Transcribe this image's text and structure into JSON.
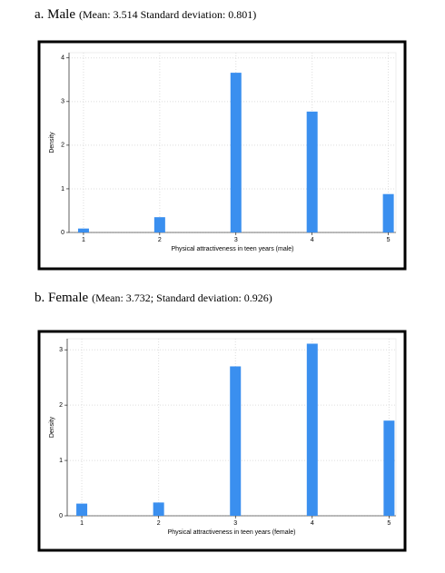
{
  "chart_data": [
    {
      "type": "bar",
      "title": "a. Male",
      "subtitle": "(Mean: 3.514 Standard deviation: 0.801)",
      "x_label": "Physical attractiveness in teen years (male)",
      "y_label": "Density",
      "x": [
        1,
        2,
        3,
        4,
        5
      ],
      "values": [
        0.09,
        0.35,
        3.66,
        2.77,
        0.88
      ],
      "color": "#3a8fef",
      "xlim": [
        0.81,
        5.1
      ],
      "ylim": [
        0,
        4.12
      ],
      "xticks": [
        1,
        2,
        3,
        4,
        5
      ],
      "yticks": [
        0,
        1,
        2,
        3,
        4
      ],
      "grid": true
    },
    {
      "type": "bar",
      "title": "b. Female",
      "subtitle": "(Mean: 3.732; Standard deviation: 0.926)",
      "x_label": "Physical attractiveness in teen years (female)",
      "y_label": "Density",
      "x": [
        1,
        2,
        3,
        4,
        5
      ],
      "values": [
        0.22,
        0.24,
        2.7,
        3.11,
        1.72
      ],
      "color": "#3a8fef",
      "xlim": [
        0.81,
        5.09
      ],
      "ylim": [
        0,
        3.2
      ],
      "xticks": [
        1,
        2,
        3,
        4,
        5
      ],
      "yticks": [
        0,
        1,
        2,
        3
      ],
      "grid": true
    }
  ]
}
